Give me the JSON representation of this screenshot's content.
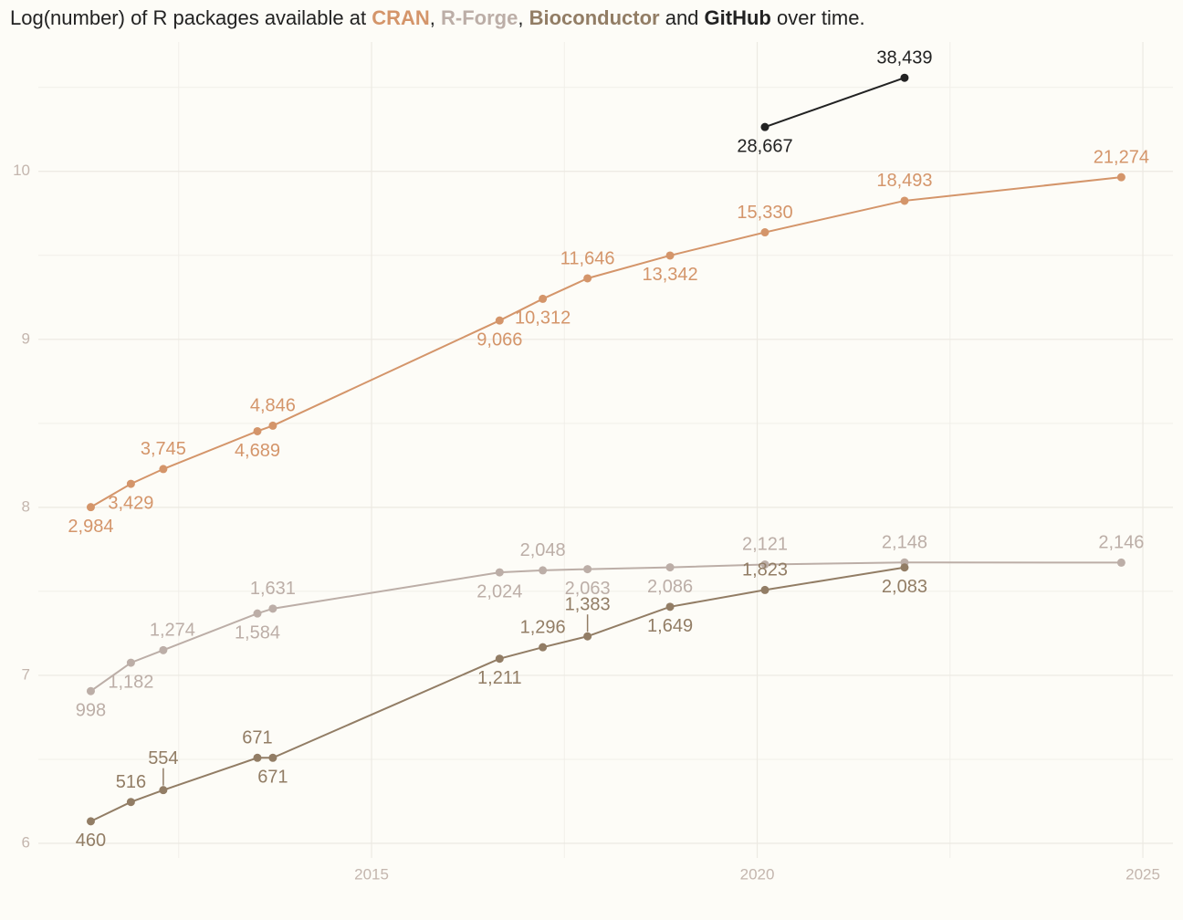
{
  "chart_data": {
    "type": "line",
    "title_parts": [
      "Log(number) of R packages available at ",
      ", ",
      ", ",
      " and ",
      " over time."
    ],
    "x": [
      2011.36,
      2011.88,
      2012.3,
      2013.52,
      2013.72,
      2016.66,
      2017.22,
      2017.8,
      2018.87,
      2020.1,
      2021.91,
      2024.72
    ],
    "series": [
      {
        "name": "CRAN",
        "color": "#d4956a",
        "values": [
          8.001,
          8.14,
          8.228,
          8.453,
          8.486,
          9.112,
          9.241,
          9.363,
          9.499,
          9.637,
          9.825,
          9.965
        ],
        "value_labels": [
          "2,984",
          "3,429",
          "3,745",
          "4,689",
          "4,846",
          "9,066",
          "10,312",
          "11,646",
          "13,342",
          "15,330",
          "18,493",
          "21,274"
        ]
      },
      {
        "name": "R-Forge",
        "color": "#bcaea7",
        "values": [
          6.906,
          7.075,
          7.15,
          7.368,
          7.397,
          7.613,
          7.625,
          7.632,
          7.643,
          7.66,
          7.672,
          7.671
        ],
        "value_labels": [
          "998",
          "1,182",
          "1,274",
          "1,584",
          "1,631",
          "2,024",
          "2,048",
          "2,063",
          "2,086",
          "2,121",
          "2,148",
          "2,146"
        ]
      },
      {
        "name": "Bioconductor",
        "color": "#927d65",
        "values": [
          6.131,
          6.246,
          6.317,
          6.509,
          6.509,
          7.099,
          7.167,
          7.232,
          7.408,
          7.508,
          7.642,
          null
        ],
        "value_labels": [
          "460",
          "516",
          "554",
          "671",
          "671",
          "1,211",
          "1,296",
          "1,383",
          "1,649",
          "1,823",
          "2,083",
          null
        ]
      },
      {
        "name": "GitHub",
        "color": "#222222",
        "values": [
          null,
          null,
          null,
          null,
          null,
          null,
          null,
          null,
          null,
          10.264,
          10.557,
          null
        ],
        "value_labels": [
          null,
          null,
          null,
          null,
          null,
          null,
          null,
          null,
          null,
          "28,667",
          "38,439",
          null
        ]
      }
    ],
    "xlim": [
      2010.68,
      2025.39
    ],
    "xticks": [
      2015,
      2020,
      2025
    ],
    "xminor": [
      2012.5,
      2017.5,
      2022.5
    ],
    "ylim": [
      5.913,
      10.77
    ],
    "yticks": [
      6,
      7,
      8,
      9,
      10
    ],
    "yminor": [
      6.5,
      7.5,
      8.5,
      9.5,
      10.5
    ],
    "grid": true
  }
}
